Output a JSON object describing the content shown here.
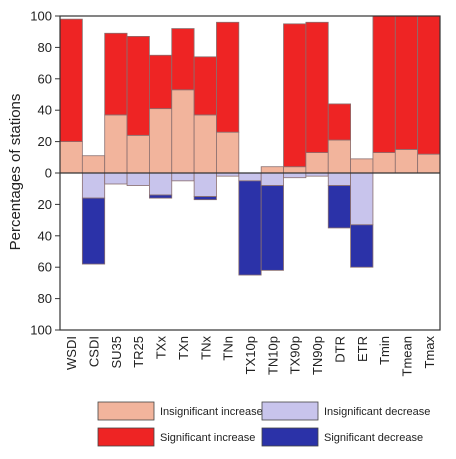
{
  "chart_data": {
    "type": "bar",
    "stacked": "diverging",
    "ylabel": "Percentages of stations",
    "ylim": [
      -100,
      100
    ],
    "yticks": [
      100,
      80,
      60,
      40,
      20,
      0,
      20,
      40,
      60,
      80,
      100
    ],
    "categories": [
      "WSDI",
      "CSDI",
      "SU35",
      "TR25",
      "TXx",
      "TXn",
      "TNx",
      "TNn",
      "TX10p",
      "TN10p",
      "TX90p",
      "TN90p",
      "DTR",
      "ETR",
      "Tmin",
      "Tmean",
      "Tmax"
    ],
    "series": [
      {
        "name": "Insignificant increase",
        "color": "#f2b49c",
        "values": [
          20,
          11,
          37,
          24,
          41,
          53,
          37,
          26,
          0,
          4,
          4,
          13,
          21,
          9,
          13,
          15,
          12
        ]
      },
      {
        "name": "Significant increase",
        "color": "#ee2424",
        "values": [
          78,
          0,
          52,
          63,
          34,
          39,
          37,
          70,
          0,
          0,
          91,
          83,
          23,
          0,
          87,
          85,
          88
        ]
      },
      {
        "name": "Insignificant decrease",
        "color": "#c8c4ec",
        "values": [
          0,
          16,
          7,
          8,
          14,
          5,
          15,
          2,
          5,
          8,
          3,
          2,
          8,
          33,
          0,
          0,
          0
        ]
      },
      {
        "name": "Significant decrease",
        "color": "#2b32a8",
        "values": [
          0,
          42,
          0,
          0,
          2,
          0,
          2,
          0,
          60,
          54,
          0,
          0,
          27,
          27,
          0,
          0,
          0
        ]
      }
    ],
    "legend": {
      "position": "bottom",
      "entries": [
        "Insignificant increase",
        "Insignificant decrease",
        "Significant increase",
        "Significant decrease"
      ]
    },
    "grid": false
  }
}
